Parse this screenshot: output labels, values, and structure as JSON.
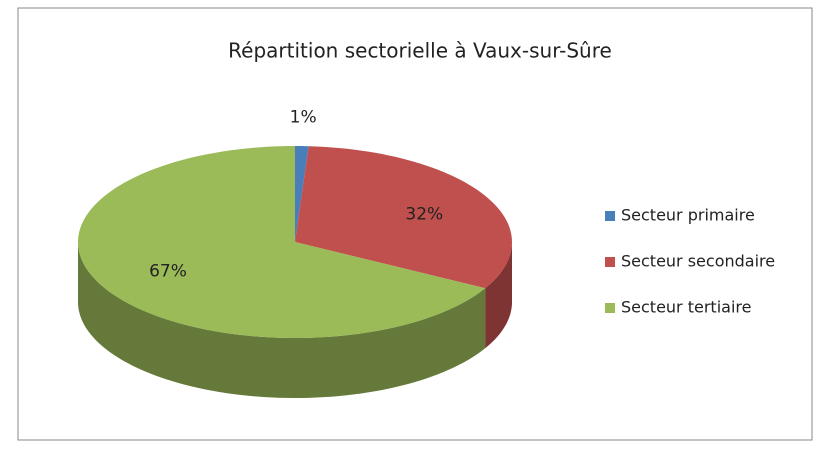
{
  "chart_data": {
    "type": "pie",
    "title": "Répartition sectorielle à Vaux-sur-Sûre",
    "categories": [
      "Secteur primaire",
      "Secteur secondaire",
      "Secteur tertiaire"
    ],
    "values": [
      1,
      32,
      67
    ],
    "value_labels": [
      "1%",
      "32%",
      "67%"
    ],
    "colors": [
      "#4a7ebb",
      "#c0504d",
      "#9bbb59"
    ],
    "legend": "right"
  }
}
